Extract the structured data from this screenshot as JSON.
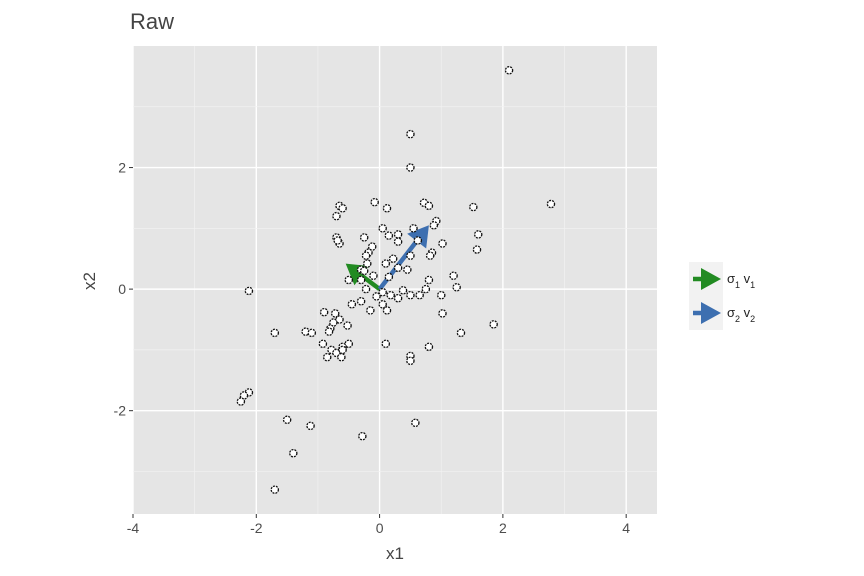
{
  "chart_data": {
    "type": "scatter",
    "title": "Raw",
    "xlabel": "x1",
    "ylabel": "x2",
    "xlim": [
      -4,
      4.5
    ],
    "ylim": [
      -3.7,
      4
    ],
    "xticks": [
      -4,
      -2,
      0,
      2,
      4
    ],
    "yticks": [
      -2,
      0,
      2
    ],
    "x_tick_labels": [
      "-4",
      "-2",
      "0",
      "2",
      "4"
    ],
    "y_tick_labels": [
      "-2",
      "0",
      "2"
    ],
    "grid": true,
    "background": "#e5e5e5",
    "points": [
      [
        2.1,
        3.6
      ],
      [
        0.5,
        2.55
      ],
      [
        0.5,
        2.0
      ],
      [
        2.78,
        1.4
      ],
      [
        1.52,
        1.35
      ],
      [
        -0.08,
        1.43
      ],
      [
        0.12,
        1.33
      ],
      [
        -0.65,
        1.37
      ],
      [
        -0.6,
        1.33
      ],
      [
        -0.7,
        1.2
      ],
      [
        0.72,
        1.42
      ],
      [
        0.8,
        1.37
      ],
      [
        0.92,
        1.12
      ],
      [
        0.88,
        1.05
      ],
      [
        0.55,
        1.0
      ],
      [
        0.05,
        1.0
      ],
      [
        0.15,
        0.88
      ],
      [
        -0.25,
        0.85
      ],
      [
        -0.7,
        0.85
      ],
      [
        -0.65,
        0.75
      ],
      [
        -0.68,
        0.8
      ],
      [
        0.3,
        0.9
      ],
      [
        0.3,
        0.78
      ],
      [
        1.6,
        0.9
      ],
      [
        1.02,
        0.75
      ],
      [
        0.62,
        0.8
      ],
      [
        -0.12,
        0.7
      ],
      [
        -0.18,
        0.6
      ],
      [
        -0.22,
        0.55
      ],
      [
        1.58,
        0.65
      ],
      [
        0.85,
        0.6
      ],
      [
        0.82,
        0.55
      ],
      [
        0.5,
        0.55
      ],
      [
        0.22,
        0.5
      ],
      [
        0.1,
        0.42
      ],
      [
        0.3,
        0.35
      ],
      [
        -0.2,
        0.42
      ],
      [
        -0.3,
        0.32
      ],
      [
        -0.25,
        0.3
      ],
      [
        -0.3,
        0.15
      ],
      [
        -0.22,
        0.0
      ],
      [
        -0.5,
        0.15
      ],
      [
        -0.1,
        0.22
      ],
      [
        0.15,
        0.2
      ],
      [
        0.45,
        0.32
      ],
      [
        0.8,
        0.15
      ],
      [
        0.75,
        0.0
      ],
      [
        1.2,
        0.22
      ],
      [
        1.25,
        0.03
      ],
      [
        0.38,
        -0.02
      ],
      [
        0.5,
        -0.1
      ],
      [
        0.05,
        -0.05
      ],
      [
        -0.05,
        -0.12
      ],
      [
        0.18,
        -0.1
      ],
      [
        0.3,
        -0.15
      ],
      [
        0.65,
        -0.1
      ],
      [
        1.0,
        -0.1
      ],
      [
        -0.3,
        -0.2
      ],
      [
        -0.45,
        -0.25
      ],
      [
        -0.15,
        -0.35
      ],
      [
        0.05,
        -0.25
      ],
      [
        0.12,
        -0.35
      ],
      [
        -0.9,
        -0.38
      ],
      [
        -0.72,
        -0.4
      ],
      [
        -0.65,
        -0.5
      ],
      [
        -0.75,
        -0.55
      ],
      [
        -0.52,
        -0.6
      ],
      [
        -0.8,
        -0.65
      ],
      [
        -0.82,
        -0.7
      ],
      [
        1.02,
        -0.4
      ],
      [
        1.85,
        -0.58
      ],
      [
        -1.2,
        -0.7
      ],
      [
        -1.1,
        -0.72
      ],
      [
        1.32,
        -0.72
      ],
      [
        -1.7,
        -0.72
      ],
      [
        -0.92,
        -0.9
      ],
      [
        -0.5,
        -0.9
      ],
      [
        -0.6,
        -0.95
      ],
      [
        -0.78,
        -1.0
      ],
      [
        -0.65,
        -1.05
      ],
      [
        -0.7,
        -1.05
      ],
      [
        -0.6,
        -1.0
      ],
      [
        0.1,
        -0.9
      ],
      [
        0.8,
        -0.95
      ],
      [
        -0.85,
        -1.12
      ],
      [
        -0.62,
        -1.12
      ],
      [
        0.5,
        -1.1
      ],
      [
        0.5,
        -1.18
      ],
      [
        -2.12,
        -0.03
      ],
      [
        -2.12,
        -1.7
      ],
      [
        -2.2,
        -1.75
      ],
      [
        -2.25,
        -1.85
      ],
      [
        -1.5,
        -2.15
      ],
      [
        -1.12,
        -2.25
      ],
      [
        0.58,
        -2.2
      ],
      [
        -0.28,
        -2.42
      ],
      [
        -1.4,
        -2.7
      ],
      [
        -1.7,
        -3.3
      ]
    ],
    "arrows": [
      {
        "x0": 0,
        "y0": 0,
        "x1": -0.55,
        "y1": 0.42,
        "color": "#228b22"
      },
      {
        "x0": 0,
        "y0": 0,
        "x1": 0.8,
        "y1": 1.05,
        "color": "#3d6fb0"
      }
    ],
    "legend": {
      "position": "right",
      "entries": [
        {
          "label": "σ1 v1",
          "color": "#228b22",
          "symbol": "σ",
          "sub1": "1",
          "mid": " v",
          "sub2": "1"
        },
        {
          "label": "σ2 v2",
          "color": "#3d6fb0",
          "symbol": "σ",
          "sub1": "2",
          "mid": " v",
          "sub2": "2"
        }
      ]
    }
  }
}
